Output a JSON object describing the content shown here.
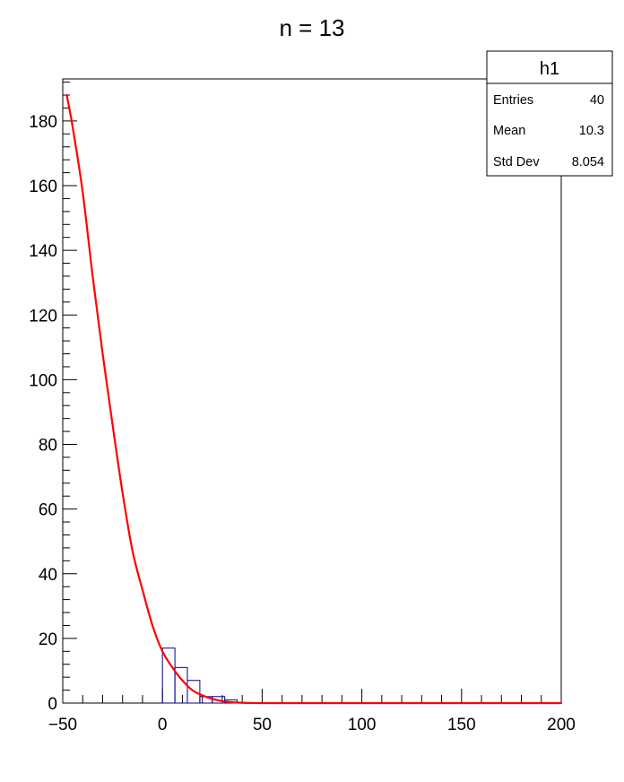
{
  "chart_data": {
    "type": "bar",
    "title": "n = 13",
    "xlabel": "",
    "ylabel": "",
    "xlim": [
      -50,
      200
    ],
    "ylim": [
      0,
      193
    ],
    "x_ticks": [
      -50,
      0,
      50,
      100,
      150,
      200
    ],
    "x_tick_labels": [
      "−50",
      "0",
      "50",
      "100",
      "150",
      "200"
    ],
    "y_ticks": [
      0,
      20,
      40,
      60,
      80,
      100,
      120,
      140,
      160,
      180
    ],
    "y_tick_labels": [
      "0",
      "20",
      "40",
      "60",
      "80",
      "100",
      "120",
      "140",
      "160",
      "180"
    ],
    "histogram": {
      "name": "h1",
      "bin_width": 6.25,
      "bins": [
        {
          "x0": 0,
          "x1": 6.25,
          "value": 17
        },
        {
          "x0": 6.25,
          "x1": 12.5,
          "value": 11
        },
        {
          "x0": 12.5,
          "x1": 18.75,
          "value": 7
        },
        {
          "x0": 18.75,
          "x1": 25,
          "value": 2
        },
        {
          "x0": 25,
          "x1": 31.25,
          "value": 2
        },
        {
          "x0": 31.25,
          "x1": 37.5,
          "value": 1
        }
      ],
      "color": "#00008b"
    },
    "fit": {
      "color": "#ff0000",
      "x": [
        -48,
        -45,
        -40,
        -35,
        -30,
        -25,
        -20,
        -15,
        -10,
        -5,
        0,
        5,
        10,
        15,
        20,
        25,
        30,
        35,
        40,
        45,
        50,
        60,
        80,
        100,
        150,
        200
      ],
      "y": [
        188,
        178,
        158,
        132,
        108,
        86,
        65,
        47,
        35,
        24,
        16,
        11,
        7,
        4,
        2.4,
        1.3,
        0.6,
        0.25,
        0.1,
        0.03,
        0,
        0,
        0,
        0,
        0,
        0
      ]
    },
    "stats": {
      "title": "h1",
      "rows": [
        {
          "label": "Entries",
          "value": "40"
        },
        {
          "label": "Mean",
          "value": "10.3"
        },
        {
          "label": "Std Dev",
          "value": "8.054"
        }
      ]
    }
  }
}
